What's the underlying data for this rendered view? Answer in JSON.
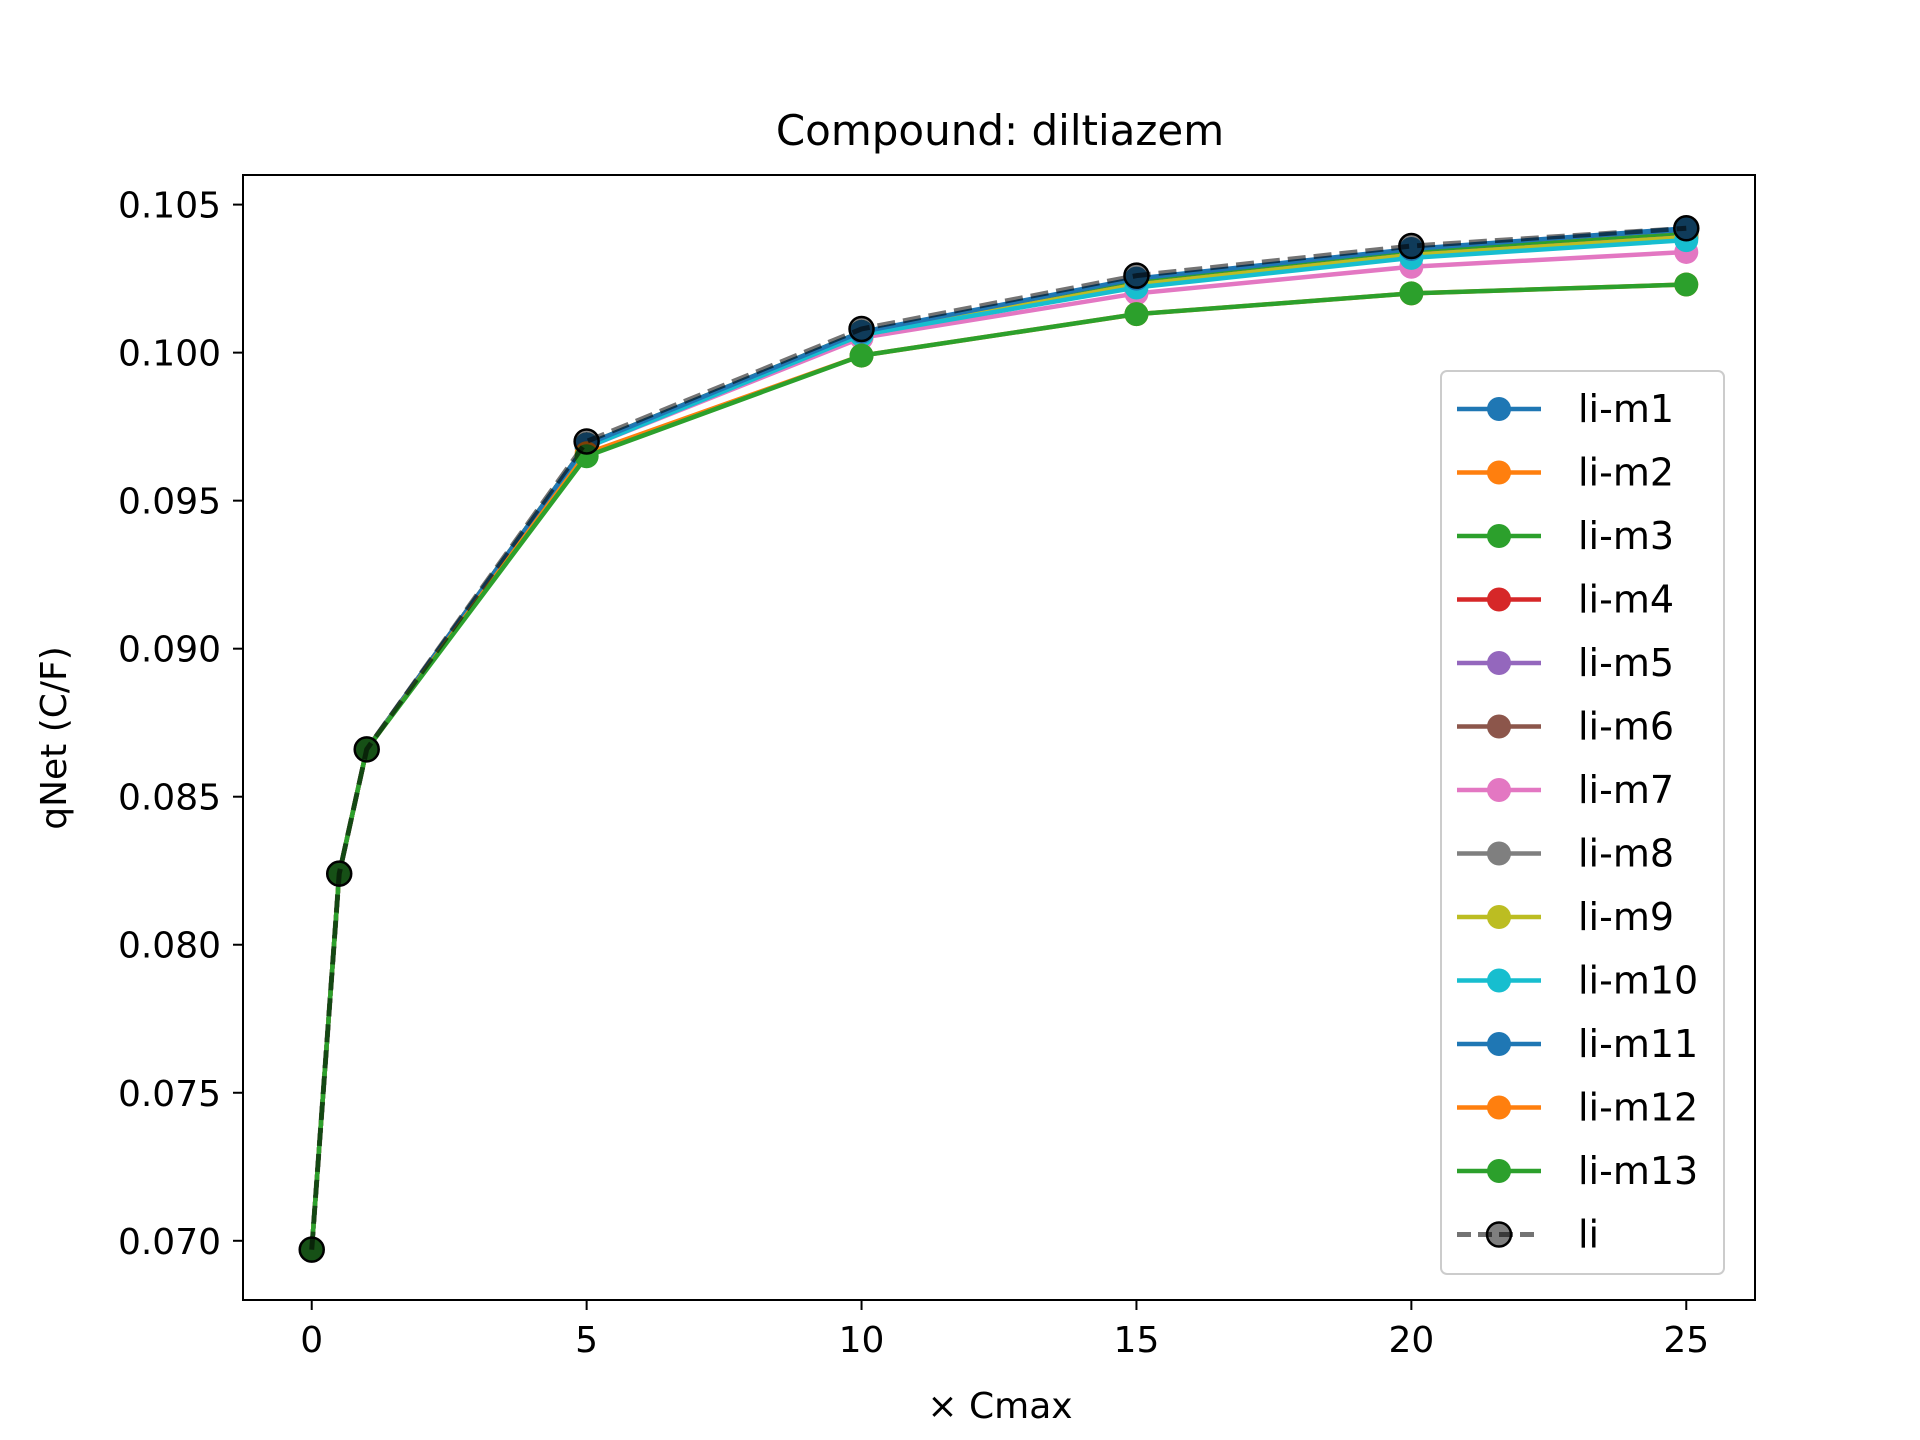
{
  "chart_data": {
    "type": "line",
    "title": "Compound: diltiazem",
    "xlabel": "× Cmax",
    "ylabel": "qNet (C/F)",
    "xlim": [
      -1.25,
      26.25
    ],
    "ylim": [
      0.068,
      0.106
    ],
    "xticks": [
      0,
      5,
      10,
      15,
      20,
      25
    ],
    "yticks": [
      0.07,
      0.075,
      0.08,
      0.085,
      0.09,
      0.095,
      0.1,
      0.105
    ],
    "xtick_labels": [
      "0",
      "5",
      "10",
      "15",
      "20",
      "25"
    ],
    "ytick_labels": [
      "0.070",
      "0.075",
      "0.080",
      "0.085",
      "0.090",
      "0.095",
      "0.100",
      "0.105"
    ],
    "grid": false,
    "legend_position": "center-right",
    "x": [
      0,
      0.5,
      1,
      5,
      10,
      15,
      20,
      25
    ],
    "series": [
      {
        "name": "li-m1",
        "color": "#1f77b4",
        "style": "solid",
        "values": [
          0.0697,
          0.0824,
          0.0866,
          0.0969,
          0.1007,
          0.1024,
          0.1034,
          0.1041
        ]
      },
      {
        "name": "li-m2",
        "color": "#ff7f0e",
        "style": "solid",
        "values": [
          0.0697,
          0.0824,
          0.0866,
          0.0969,
          0.1007,
          0.1024,
          0.1034,
          0.104
        ]
      },
      {
        "name": "li-m3",
        "color": "#2ca02c",
        "style": "solid",
        "values": [
          0.0697,
          0.0824,
          0.0866,
          0.0969,
          0.1007,
          0.1024,
          0.1034,
          0.104
        ]
      },
      {
        "name": "li-m4",
        "color": "#d62728",
        "style": "solid",
        "values": [
          0.0697,
          0.0824,
          0.0866,
          0.0969,
          0.1006,
          0.1023,
          0.1033,
          0.1039
        ]
      },
      {
        "name": "li-m5",
        "color": "#9467bd",
        "style": "solid",
        "values": [
          0.0697,
          0.0824,
          0.0866,
          0.0969,
          0.1006,
          0.1023,
          0.1033,
          0.1039
        ]
      },
      {
        "name": "li-m6",
        "color": "#8c564b",
        "style": "solid",
        "values": [
          0.0697,
          0.0824,
          0.0866,
          0.0969,
          0.1006,
          0.1023,
          0.1033,
          0.1039
        ]
      },
      {
        "name": "li-m7",
        "color": "#e377c2",
        "style": "solid",
        "values": [
          0.0697,
          0.0824,
          0.0866,
          0.0968,
          0.1005,
          0.102,
          0.1029,
          0.1034
        ]
      },
      {
        "name": "li-m8",
        "color": "#7f7f7f",
        "style": "solid",
        "values": [
          0.0697,
          0.0824,
          0.0866,
          0.0969,
          0.1006,
          0.1023,
          0.1033,
          0.1039
        ]
      },
      {
        "name": "li-m9",
        "color": "#bcbd22",
        "style": "solid",
        "values": [
          0.0697,
          0.0824,
          0.0866,
          0.0969,
          0.1006,
          0.1023,
          0.1033,
          0.1039
        ]
      },
      {
        "name": "li-m10",
        "color": "#17becf",
        "style": "solid",
        "values": [
          0.0697,
          0.0824,
          0.0866,
          0.0968,
          0.1006,
          0.1022,
          0.1032,
          0.1038
        ]
      },
      {
        "name": "li-m11",
        "color": "#1f77b4",
        "style": "solid",
        "values": [
          0.0697,
          0.0824,
          0.0866,
          0.0969,
          0.1007,
          0.1025,
          0.1035,
          0.1042
        ]
      },
      {
        "name": "li-m12",
        "color": "#ff7f0e",
        "style": "solid",
        "values": [
          0.0697,
          0.0824,
          0.0866,
          0.0966,
          0.0999,
          0.1013,
          0.102,
          0.1023
        ]
      },
      {
        "name": "li-m13",
        "color": "#2ca02c",
        "style": "solid",
        "values": [
          0.0697,
          0.0824,
          0.0866,
          0.0965,
          0.0999,
          0.1013,
          0.102,
          0.1023
        ]
      },
      {
        "name": "li",
        "color": "#000000",
        "style": "dashed",
        "values": [
          0.0697,
          0.0824,
          0.0866,
          0.097,
          0.1008,
          0.1026,
          0.1036,
          0.1042
        ]
      }
    ]
  }
}
